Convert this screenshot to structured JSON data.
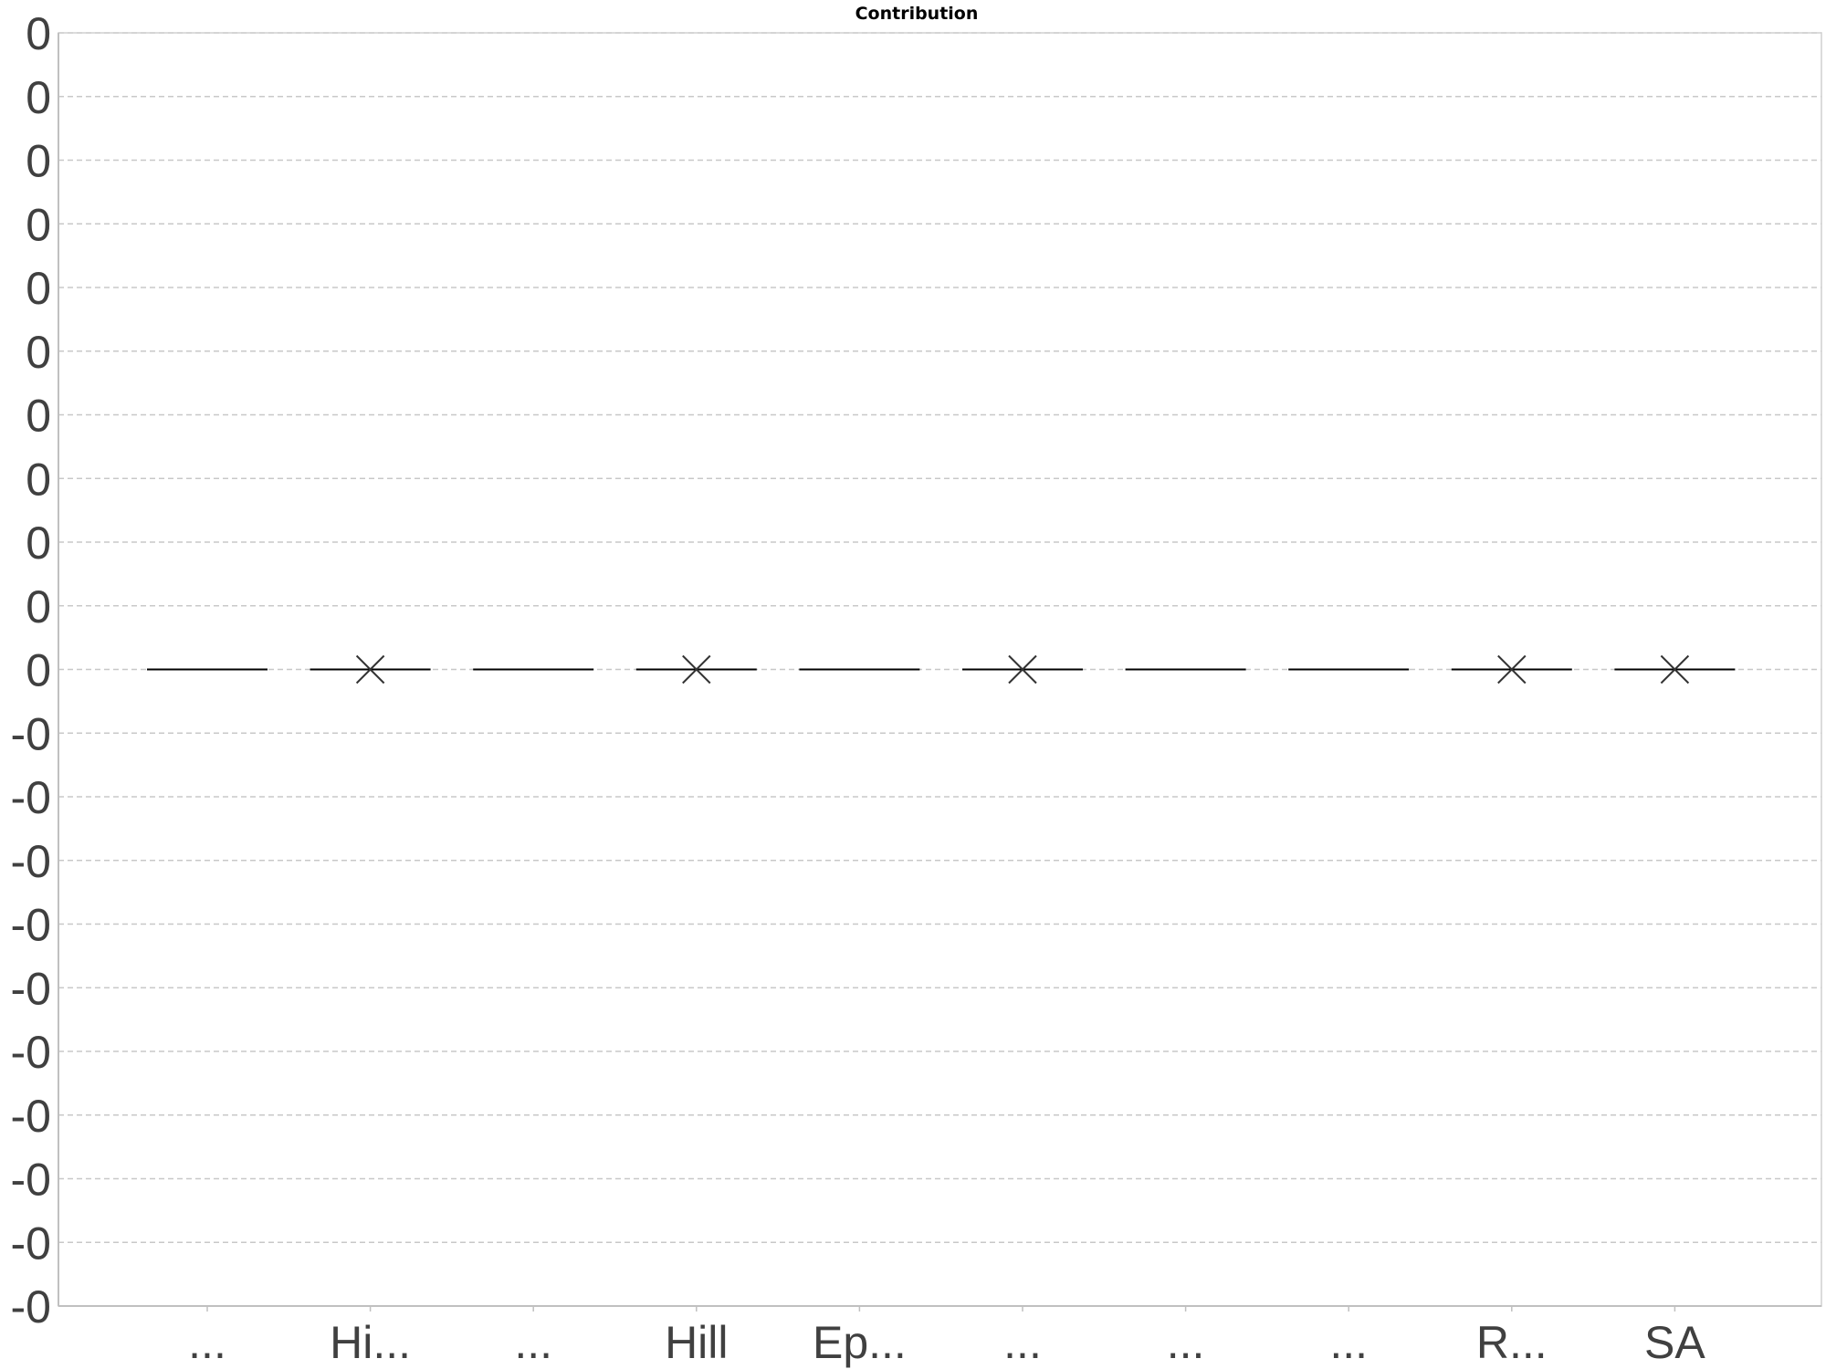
{
  "chart_data": {
    "type": "box",
    "title": "Contribution",
    "xlabel": "",
    "ylabel": "",
    "categories": [
      "...",
      "Hi...",
      "...",
      "Hill",
      "Ep...",
      "...",
      "...",
      "...",
      "R...",
      "SA"
    ],
    "values": [
      0,
      0,
      0,
      0,
      0,
      0,
      0,
      0,
      0,
      0
    ],
    "mean_marker_shown": [
      false,
      true,
      false,
      true,
      false,
      true,
      false,
      false,
      true,
      true
    ],
    "y_tick_labels": [
      "0",
      "0",
      "0",
      "0",
      "0",
      "0",
      "0",
      "0",
      "0",
      "0",
      "0",
      "-0",
      "-0",
      "-0",
      "-0",
      "-0",
      "-0",
      "-0",
      "-0",
      "-0",
      "-0"
    ],
    "ylim": [
      -0.0001,
      0.0001
    ],
    "grid": true,
    "legend": "none",
    "colors": {
      "median": "#000000",
      "mean_marker": "#333333",
      "grid": "#c8c8c8",
      "text": "#404040"
    }
  }
}
